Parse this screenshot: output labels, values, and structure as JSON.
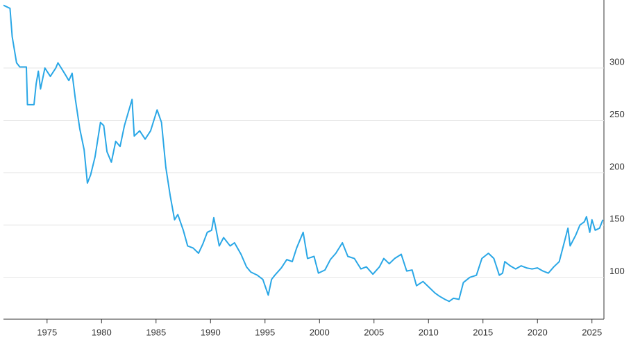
{
  "chart_data": {
    "type": "line",
    "x": [
      1971.0,
      1971.6,
      1971.8,
      1972.2,
      1972.5,
      1973.1,
      1973.2,
      1973.8,
      1974.0,
      1974.2,
      1974.4,
      1974.8,
      1975.3,
      1975.8,
      1976.0,
      1976.6,
      1977.0,
      1977.3,
      1977.6,
      1978.0,
      1978.4,
      1978.7,
      1979.0,
      1979.4,
      1979.9,
      1980.2,
      1980.5,
      1980.9,
      1981.3,
      1981.7,
      1982.1,
      1982.8,
      1983.0,
      1983.5,
      1984.0,
      1984.5,
      1985.1,
      1985.5,
      1985.9,
      1986.3,
      1986.7,
      1987.0,
      1987.5,
      1987.9,
      1988.4,
      1988.9,
      1989.3,
      1989.7,
      1990.1,
      1990.3,
      1990.8,
      1991.2,
      1991.8,
      1992.2,
      1992.8,
      1993.3,
      1993.7,
      1994.3,
      1994.8,
      1995.3,
      1995.6,
      1995.9,
      1996.5,
      1997.0,
      1997.5,
      1997.9,
      1998.5,
      1998.9,
      1999.5,
      1999.9,
      2000.5,
      2001.0,
      2001.5,
      2002.1,
      2002.6,
      2003.2,
      2003.8,
      2004.3,
      2004.9,
      2005.5,
      2005.9,
      2006.4,
      2006.9,
      2007.5,
      2008.0,
      2008.5,
      2008.9,
      2009.5,
      2010.0,
      2010.6,
      2011.0,
      2011.5,
      2011.9,
      2012.3,
      2012.8,
      2013.2,
      2013.8,
      2014.4,
      2014.9,
      2015.5,
      2016.0,
      2016.5,
      2016.8,
      2017.0,
      2017.5,
      2018.0,
      2018.5,
      2019.0,
      2019.5,
      2020.0,
      2020.5,
      2021.0,
      2021.5,
      2022.0,
      2022.5,
      2022.8,
      2023.0,
      2023.5,
      2023.9,
      2024.3,
      2024.5,
      2024.8,
      2025.0,
      2025.3,
      2025.7,
      2026.0
    ],
    "y": [
      360,
      357,
      330,
      305,
      301,
      301,
      265,
      265,
      285,
      297,
      280,
      300,
      292,
      300,
      305,
      295,
      288,
      295,
      270,
      242,
      222,
      190,
      198,
      215,
      248,
      245,
      220,
      210,
      230,
      225,
      245,
      270,
      235,
      240,
      232,
      240,
      260,
      248,
      205,
      178,
      155,
      160,
      145,
      130,
      128,
      123,
      132,
      143,
      145,
      157,
      130,
      138,
      130,
      133,
      122,
      110,
      105,
      102,
      98,
      83,
      98,
      102,
      109,
      117,
      115,
      128,
      143,
      118,
      120,
      104,
      107,
      117,
      123,
      133,
      120,
      118,
      108,
      110,
      103,
      110,
      118,
      113,
      118,
      122,
      106,
      107,
      92,
      96,
      91,
      85,
      82,
      79,
      77,
      80,
      79,
      95,
      100,
      102,
      118,
      123,
      118,
      102,
      104,
      115,
      111,
      108,
      111,
      109,
      108,
      109,
      106,
      104,
      110,
      115,
      135,
      147,
      130,
      140,
      150,
      153,
      158,
      143,
      155,
      145,
      147,
      155
    ],
    "color": "#2aa7e6",
    "xlim": [
      1971,
      2026.1
    ],
    "xticks": [
      1975,
      1980,
      1985,
      1990,
      1995,
      2000,
      2005,
      2010,
      2015,
      2020,
      2025
    ],
    "ylim": [
      60,
      365
    ],
    "yticks": [
      100,
      150,
      200,
      250,
      300
    ],
    "grid": true
  }
}
